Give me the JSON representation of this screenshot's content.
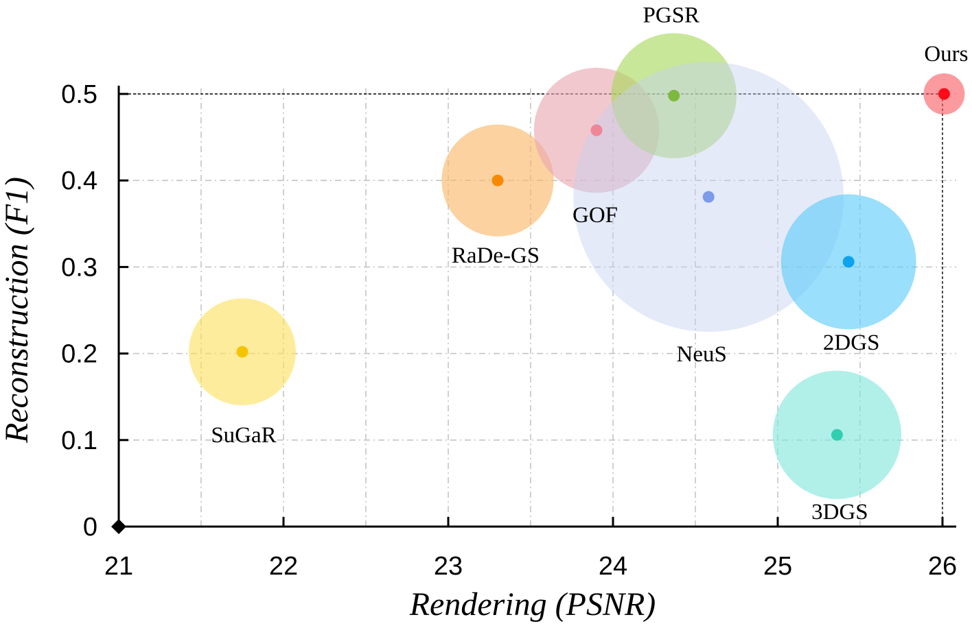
{
  "chart_data": {
    "type": "scatter",
    "subtype": "bubble",
    "xlabel": "Rendering  (PSNR)",
    "ylabel": "Reconstruction  (F1)",
    "xlim": [
      21,
      26.1
    ],
    "ylim": [
      0,
      0.53
    ],
    "x_ticks": [
      21,
      22,
      23,
      24,
      25,
      26
    ],
    "y_ticks": [
      0,
      0.1,
      0.2,
      0.3,
      0.4,
      0.5
    ],
    "x_tick_labels": [
      "21",
      "22",
      "23",
      "24",
      "25",
      "26"
    ],
    "y_tick_labels": [
      "0",
      "0.1",
      "0.2",
      "0.3",
      "0.4",
      "0.5"
    ],
    "x_grid": [
      21.5,
      22,
      22.5,
      23,
      23.5,
      24,
      24.5,
      25,
      25.5
    ],
    "y_grid": [
      0.1,
      0.2,
      0.3,
      0.4,
      0.5
    ],
    "grid": true,
    "reference_lines": {
      "x": 26.0,
      "y": 0.5
    },
    "series": [
      {
        "name": "SuGaR",
        "x": 21.75,
        "y": 0.202,
        "bubble_radius": 0.65,
        "color": "#fce060",
        "dot_color": "#f5c400",
        "label_pos": "below"
      },
      {
        "name": "RaDe-GS",
        "x": 23.3,
        "y": 0.4,
        "bubble_radius": 0.68,
        "color": "#f9b766",
        "dot_color": "#f78a05",
        "label_pos": "below"
      },
      {
        "name": "GOF",
        "x": 23.9,
        "y": 0.458,
        "bubble_radius": 0.76,
        "color": "#e8a6b0",
        "dot_color": "#ef8696",
        "label_pos": "below"
      },
      {
        "name": "PGSR",
        "x": 24.37,
        "y": 0.498,
        "bubble_radius": 0.76,
        "color": "#a8d85a",
        "dot_color": "#7fb841",
        "label_pos": "above"
      },
      {
        "name": "NeuS",
        "x": 24.58,
        "y": 0.381,
        "bubble_radius": 1.64,
        "color": "#c6d0f2",
        "dot_color": "#7c9be8",
        "label_pos": "below"
      },
      {
        "name": "2DGS",
        "x": 25.43,
        "y": 0.306,
        "bubble_radius": 0.82,
        "color": "#5ccbf8",
        "dot_color": "#0fa2ed",
        "label_pos": "below"
      },
      {
        "name": "3DGS",
        "x": 25.36,
        "y": 0.106,
        "bubble_radius": 0.78,
        "color": "#7fe6dc",
        "dot_color": "#2fcfb0",
        "label_pos": "below"
      },
      {
        "name": "Ours",
        "x": 26.01,
        "y": 0.5,
        "bubble_radius": 0.25,
        "color": "#f95d66",
        "dot_color": "#ff0a1a",
        "label_pos": "above"
      }
    ]
  }
}
